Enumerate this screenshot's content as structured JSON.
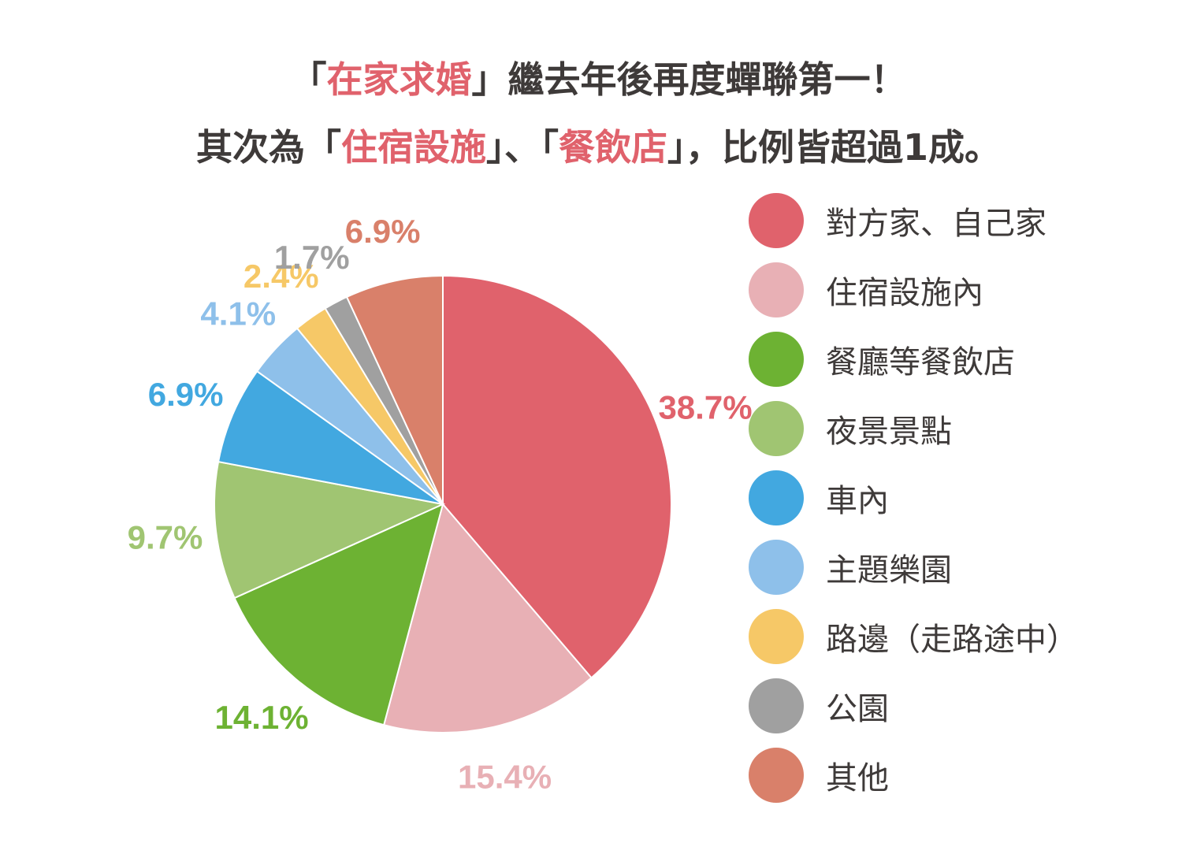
{
  "title": {
    "line1": {
      "bracket_open": "「",
      "highlight": "在家求婚",
      "bracket_close": "」",
      "rest": "繼去年後再度蟬聯第一！"
    },
    "line2": {
      "prefix": "其次為「",
      "highlight1": "住宿設施",
      "middle": "」、「",
      "highlight2": "餐飲店",
      "suffix": "」，比例皆超過1成。"
    }
  },
  "chart_data": {
    "type": "pie",
    "unit": "%",
    "slices": [
      {
        "label": "對方家、自己家",
        "value": 38.7,
        "value_label": "38.7%",
        "color": "#e0626c"
      },
      {
        "label": "住宿設施內",
        "value": 15.4,
        "value_label": "15.4%",
        "color": "#e8b0b5"
      },
      {
        "label": "餐廳等餐飲店",
        "value": 14.1,
        "value_label": "14.1%",
        "color": "#6db233"
      },
      {
        "label": "夜景景點",
        "value": 9.7,
        "value_label": "9.7%",
        "color": "#a0c572"
      },
      {
        "label": "車內",
        "value": 6.9,
        "value_label": "6.9%",
        "color": "#42a8e0"
      },
      {
        "label": "主題樂園",
        "value": 4.1,
        "value_label": "4.1%",
        "color": "#8ec0ea"
      },
      {
        "label": "路邊（走路途中）",
        "value": 2.4,
        "value_label": "2.4%",
        "color": "#f6c867"
      },
      {
        "label": "公園",
        "value": 1.7,
        "value_label": "1.7%",
        "color": "#a0a0a0"
      },
      {
        "label": "其他",
        "value": 6.9,
        "value_label": "6.9%",
        "color": "#d9806a"
      }
    ],
    "start": "top",
    "direction": "clockwise",
    "legend_position": "right"
  }
}
